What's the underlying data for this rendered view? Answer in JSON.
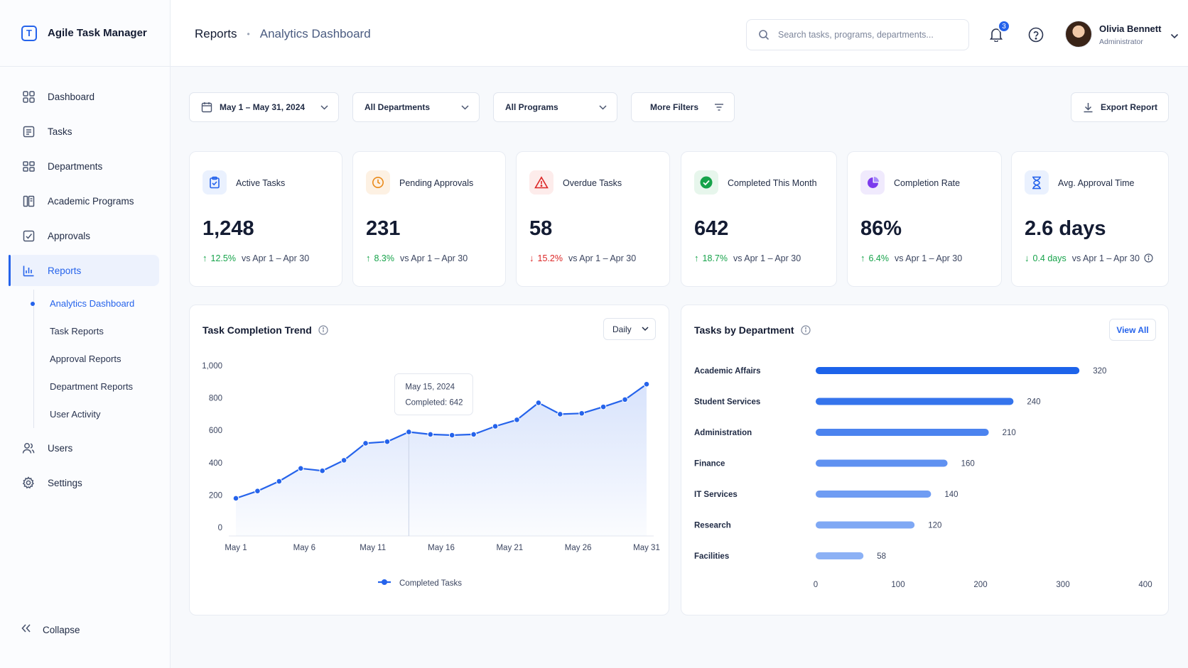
{
  "app": {
    "name": "Agile Task Manager"
  },
  "sidebar": {
    "items": [
      {
        "label": "Dashboard",
        "icon": "grid-icon"
      },
      {
        "label": "Tasks",
        "icon": "list-icon"
      },
      {
        "label": "Departments",
        "icon": "departments-icon"
      },
      {
        "label": "Academic Programs",
        "icon": "book-icon"
      },
      {
        "label": "Approvals",
        "icon": "checkbox-icon"
      },
      {
        "label": "Reports",
        "icon": "bar-chart-icon"
      },
      {
        "label": "Users",
        "icon": "users-icon"
      },
      {
        "label": "Settings",
        "icon": "gear-icon"
      }
    ],
    "active": "Reports",
    "subitems": [
      {
        "label": "Analytics Dashboard"
      },
      {
        "label": "Task Reports"
      },
      {
        "label": "Approval Reports"
      },
      {
        "label": "Department Reports"
      },
      {
        "label": "User Activity"
      }
    ],
    "collapse_label": "Collapse"
  },
  "header": {
    "breadcrumb": [
      "Reports",
      "Analytics Dashboard"
    ],
    "search_placeholder": "Search tasks, programs, departments...",
    "notification_count": "3",
    "user": {
      "name": "Olivia Bennett",
      "role": "Administrator"
    }
  },
  "filters": {
    "date_range": "May 1 – May 31, 2024",
    "department": "All Departments",
    "program": "All Programs",
    "more": "More Filters",
    "export": "Export Report"
  },
  "kpis": [
    {
      "label": "Active Tasks",
      "value": "1,248",
      "delta": "12.5%",
      "direction": "up",
      "compare": "vs Apr 1 – Apr 30",
      "icon": "clipboard-check-icon",
      "color": "#2563eb",
      "bg": "#eaf1fe"
    },
    {
      "label": "Pending Approvals",
      "value": "231",
      "delta": "8.3%",
      "direction": "up",
      "compare": "vs Apr 1 – Apr 30",
      "icon": "clock-icon",
      "color": "#ea8a1a",
      "bg": "#fdf1e3"
    },
    {
      "label": "Overdue Tasks",
      "value": "58",
      "delta": "15.2%",
      "direction": "down",
      "compare": "vs Apr 1 – Apr 30",
      "icon": "warning-icon",
      "color": "#dc2626",
      "bg": "#fdeceb"
    },
    {
      "label": "Completed This Month",
      "value": "642",
      "delta": "18.7%",
      "direction": "up",
      "compare": "vs Apr 1 – Apr 30",
      "icon": "check-circle-icon",
      "color": "#16a34a",
      "bg": "#e7f6ec"
    },
    {
      "label": "Completion Rate",
      "value": "86%",
      "delta": "6.4%",
      "direction": "up",
      "compare": "vs Apr 1 – Apr 30",
      "icon": "pie-icon",
      "color": "#7c3aed",
      "bg": "#f0eafd"
    },
    {
      "label": "Avg. Approval Time",
      "value": "2.6 days",
      "delta": "0.4 days",
      "direction": "down-good",
      "compare": "vs Apr 1 – Apr 30",
      "icon": "hourglass-icon",
      "color": "#2563eb",
      "bg": "#eaf1fe"
    }
  ],
  "trend": {
    "title": "Task Completion Trend",
    "granularity": "Daily",
    "tooltip": {
      "date": "May 15, 2024",
      "text": "Completed: 642"
    },
    "legend": "Completed Tasks"
  },
  "departments_panel": {
    "title": "Tasks by Department",
    "view_all": "View All"
  },
  "chart_data": [
    {
      "type": "area",
      "title": "Task Completion Trend",
      "series": [
        {
          "name": "Completed Tasks",
          "values": [
            180,
            225,
            285,
            365,
            350,
            415,
            520,
            530,
            590,
            575,
            570,
            575,
            625,
            665,
            770,
            700,
            705,
            745,
            790,
            885
          ]
        }
      ],
      "x_tick_labels": [
        "May 1",
        "May 6",
        "May 11",
        "May 16",
        "May 21",
        "May 26",
        "May 31"
      ],
      "ylim": [
        0,
        1000
      ],
      "y_ticks": [
        "0",
        "200",
        "400",
        "600",
        "800",
        "1,000"
      ],
      "color": "#2563eb",
      "legend": "bottom"
    },
    {
      "type": "bar",
      "orientation": "horizontal",
      "title": "Tasks by Department",
      "categories": [
        "Academic Affairs",
        "Student Services",
        "Administration",
        "Finance",
        "IT Services",
        "Research",
        "Facilities"
      ],
      "values": [
        320,
        240,
        210,
        160,
        140,
        120,
        58
      ],
      "xlim": [
        0,
        400
      ],
      "x_ticks": [
        "0",
        "100",
        "200",
        "300",
        "400"
      ],
      "colors": [
        "#1d63ea",
        "#3574ec",
        "#4b83ef",
        "#5f91f1",
        "#6f9cf3",
        "#7fa8f4",
        "#8cb1f5"
      ]
    }
  ]
}
